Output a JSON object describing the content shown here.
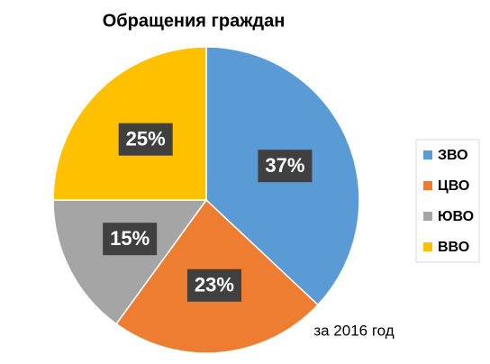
{
  "chart_data": {
    "type": "pie",
    "title": "Обращения граждан",
    "categories": [
      "ЗВО",
      "ЦВО",
      "ЮВО",
      "ВВО"
    ],
    "values": [
      37,
      23,
      15,
      25
    ],
    "value_labels": [
      "37%",
      "23%",
      "15%",
      "25%"
    ],
    "colors": [
      "#5b9bd5",
      "#ed7d31",
      "#a5a5a5",
      "#ffc000"
    ],
    "annotation": "за 2016 год",
    "legend": "right"
  }
}
